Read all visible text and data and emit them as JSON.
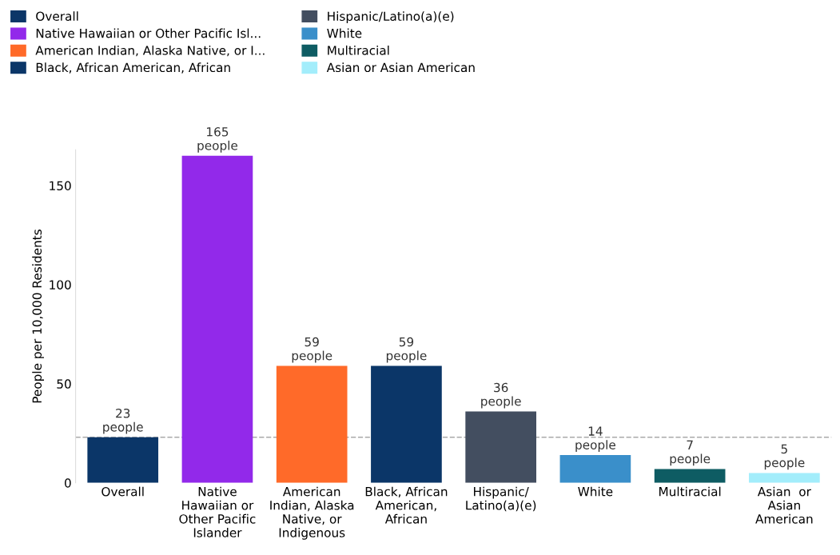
{
  "chart_data": {
    "type": "bar",
    "ylabel": "People per 10,000 Residents",
    "categories": [
      "Overall",
      "Native\nHawaiian or\nOther Pacific\nIslander",
      "American\nIndian, Alaska\nNative, or\nIndigenous",
      "Black, African\nAmerican,\nAfrican",
      "Hispanic/\nLatino(a)(e)",
      "White",
      "Multiracial",
      "Asian  or\nAsian\nAmerican"
    ],
    "series": [
      {
        "name": "Overall",
        "color": "#0b3668",
        "values": [
          23,
          null,
          null,
          null,
          null,
          null,
          null,
          null
        ],
        "value_labels": [
          "23\npeople",
          null,
          null,
          null,
          null,
          null,
          null,
          null
        ]
      },
      {
        "name": "Native Hawaiian or Other Pacific Isl...",
        "color": "#9229ea",
        "values": [
          null,
          165,
          null,
          null,
          null,
          null,
          null,
          null
        ],
        "value_labels": [
          null,
          "165\npeople",
          null,
          null,
          null,
          null,
          null,
          null
        ]
      },
      {
        "name": "American Indian, Alaska Native, or I...",
        "color": "#ff6a29",
        "values": [
          null,
          null,
          59,
          null,
          null,
          null,
          null,
          null
        ],
        "value_labels": [
          null,
          null,
          "59\npeople",
          null,
          null,
          null,
          null,
          null
        ]
      },
      {
        "name": "Black, African American, African",
        "color": "#0b3668",
        "values": [
          null,
          null,
          null,
          59,
          null,
          null,
          null,
          null
        ],
        "value_labels": [
          null,
          null,
          null,
          "59\npeople",
          null,
          null,
          null,
          null
        ]
      },
      {
        "name": "Hispanic/Latino(a)(e)",
        "color": "#434e60",
        "values": [
          null,
          null,
          null,
          null,
          36,
          null,
          null,
          null
        ],
        "value_labels": [
          null,
          null,
          null,
          null,
          "36\npeople",
          null,
          null,
          null
        ]
      },
      {
        "name": "White",
        "color": "#3a8fca",
        "values": [
          null,
          null,
          null,
          null,
          null,
          14,
          null,
          null
        ],
        "value_labels": [
          null,
          null,
          null,
          null,
          null,
          "14\npeople",
          null,
          null
        ]
      },
      {
        "name": "Multiracial",
        "color": "#0e5c63",
        "values": [
          null,
          null,
          null,
          null,
          null,
          null,
          7,
          null
        ],
        "value_labels": [
          null,
          null,
          null,
          null,
          null,
          null,
          "7\npeople",
          null
        ]
      },
      {
        "name": "Asian or Asian American",
        "color": "#a3edfb",
        "values": [
          null,
          null,
          null,
          null,
          null,
          null,
          null,
          5
        ],
        "value_labels": [
          null,
          null,
          null,
          null,
          null,
          null,
          null,
          "5\npeople"
        ]
      }
    ],
    "ylim": [
      0,
      168
    ],
    "yticks": [
      0,
      50,
      100,
      150
    ],
    "ref_lines": [
      {
        "axis": "y",
        "value": 23,
        "color": "#aaaaaa",
        "line_style": "dashed"
      }
    ],
    "legend": "top left",
    "grid": false
  }
}
